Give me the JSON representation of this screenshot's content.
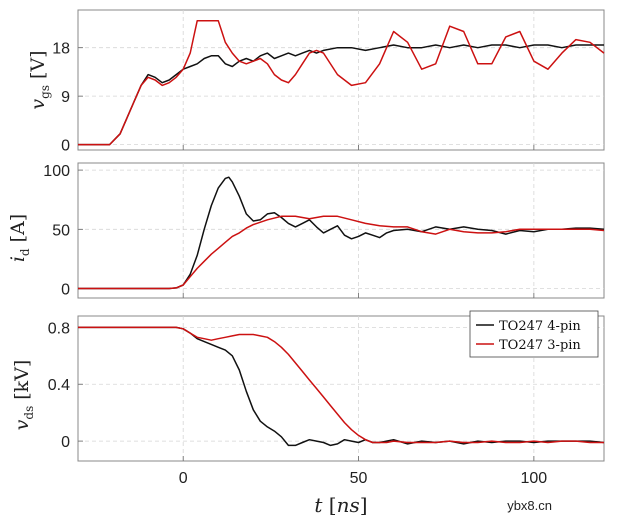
{
  "chart_data": {
    "type": "line",
    "xlabel": "t [ns]",
    "xlim": [
      -30,
      120
    ],
    "xticks": [
      0,
      50,
      100
    ],
    "colors": {
      "black": "#111111",
      "red": "#cc1111"
    },
    "legend": {
      "location": "top-right of bottom panel",
      "entries": [
        "TO247 4-pin",
        "TO247 3-pin"
      ]
    },
    "panels": [
      {
        "id": "vgs",
        "ylabel": "v_gs [V]",
        "ylim": [
          -1,
          25
        ],
        "yticks": [
          0,
          9,
          18
        ],
        "series": [
          {
            "name": "TO247 4-pin",
            "color": "#111111",
            "x": [
              -30,
              -21,
              -18,
              -14,
              -12,
              -10,
              -8,
              -6,
              -4,
              -2,
              0,
              2,
              4,
              6,
              8,
              10,
              12,
              14,
              16,
              18,
              20,
              22,
              24,
              26,
              28,
              30,
              32,
              34,
              36,
              38,
              40,
              44,
              48,
              52,
              56,
              60,
              64,
              68,
              72,
              76,
              80,
              84,
              88,
              92,
              96,
              100,
              104,
              108,
              112,
              116,
              120
            ],
            "y": [
              0,
              0,
              2,
              8,
              11,
              13,
              12.5,
              11.5,
              12,
              13,
              14,
              14.5,
              15,
              16,
              16.5,
              16.5,
              15,
              14.5,
              15.5,
              16,
              15.5,
              16.5,
              17,
              16,
              16.5,
              17,
              16.5,
              17,
              17.5,
              17,
              17.5,
              18,
              18,
              17.5,
              18,
              18.5,
              18,
              18,
              18.5,
              18,
              18.5,
              18,
              18.5,
              18.5,
              18,
              18.5,
              18.5,
              18,
              18.5,
              18.5,
              18.5
            ]
          },
          {
            "name": "TO247 3-pin",
            "color": "#cc1111",
            "x": [
              -30,
              -21,
              -18,
              -14,
              -12,
              -10,
              -8,
              -6,
              -4,
              -2,
              0,
              2,
              3,
              4,
              8,
              9,
              10,
              11,
              12,
              14,
              16,
              18,
              20,
              22,
              24,
              26,
              28,
              30,
              32,
              34,
              36,
              38,
              40,
              44,
              48,
              52,
              56,
              60,
              64,
              68,
              72,
              76,
              80,
              84,
              88,
              92,
              96,
              100,
              104,
              108,
              112,
              116,
              120
            ],
            "y": [
              0,
              0,
              2,
              8,
              11,
              12.5,
              12,
              11,
              11.5,
              12.5,
              14,
              17,
              20,
              23,
              23,
              23,
              23,
              21,
              19,
              17,
              15.5,
              15,
              15.5,
              16,
              15,
              13,
              12,
              11.5,
              13,
              15,
              17,
              17.5,
              17,
              13,
              11,
              11.5,
              15,
              21,
              19,
              14,
              15,
              22,
              21,
              15,
              15,
              20,
              21,
              15.5,
              14,
              17,
              19.5,
              19,
              17
            ]
          }
        ]
      },
      {
        "id": "id",
        "ylabel": "i_d [A]",
        "ylim": [
          -8,
          106
        ],
        "yticks": [
          0,
          50,
          100
        ],
        "series": [
          {
            "name": "TO247 4-pin",
            "color": "#111111",
            "x": [
              -30,
              -4,
              -2,
              0,
              2,
              4,
              6,
              8,
              10,
              12,
              13,
              14,
              16,
              18,
              20,
              22,
              24,
              26,
              28,
              30,
              32,
              34,
              36,
              38,
              40,
              42,
              44,
              46,
              48,
              50,
              52,
              54,
              56,
              58,
              60,
              64,
              68,
              72,
              76,
              80,
              84,
              88,
              92,
              96,
              100,
              104,
              108,
              112,
              116,
              120
            ],
            "y": [
              0,
              0,
              0.5,
              3,
              12,
              28,
              50,
              70,
              85,
              93,
              94,
              90,
              78,
              63,
              57,
              58,
              63,
              64,
              60,
              55,
              52,
              55,
              58,
              52,
              47,
              50,
              53,
              45,
              42,
              44,
              47,
              45,
              43,
              47,
              49,
              50,
              48,
              52,
              50,
              52,
              50,
              49,
              46,
              49,
              48,
              50,
              50,
              51,
              51,
              50
            ]
          },
          {
            "name": "TO247 3-pin",
            "color": "#cc1111",
            "x": [
              -30,
              -4,
              -2,
              0,
              2,
              4,
              6,
              8,
              10,
              12,
              14,
              16,
              18,
              20,
              24,
              28,
              32,
              36,
              40,
              44,
              48,
              52,
              56,
              60,
              64,
              68,
              72,
              76,
              80,
              84,
              88,
              92,
              96,
              100,
              104,
              108,
              112,
              116,
              120
            ],
            "y": [
              0,
              0,
              0.5,
              3,
              10,
              17,
              23,
              29,
              34,
              39,
              44,
              47,
              51,
              54,
              58,
              61,
              61,
              59,
              61,
              61,
              58,
              55,
              53,
              52,
              52,
              48,
              46,
              50,
              48,
              47,
              47,
              48,
              50,
              50,
              50,
              50,
              50,
              50,
              49
            ]
          }
        ]
      },
      {
        "id": "vds",
        "ylabel": "v_ds [kV]",
        "ylim": [
          -0.14,
          0.88
        ],
        "yticks": [
          0,
          0.4,
          0.8
        ],
        "series": [
          {
            "name": "TO247 4-pin",
            "color": "#111111",
            "x": [
              -30,
              -2,
              0,
              2,
              4,
              6,
              8,
              10,
              12,
              14,
              16,
              18,
              20,
              22,
              24,
              26,
              28,
              30,
              32,
              34,
              36,
              38,
              40,
              42,
              44,
              46,
              48,
              50,
              52,
              54,
              56,
              58,
              60,
              64,
              68,
              72,
              76,
              80,
              84,
              88,
              92,
              96,
              100,
              104,
              108,
              112,
              116,
              120
            ],
            "y": [
              0.8,
              0.8,
              0.79,
              0.76,
              0.72,
              0.7,
              0.68,
              0.66,
              0.64,
              0.6,
              0.5,
              0.35,
              0.22,
              0.14,
              0.1,
              0.07,
              0.03,
              -0.03,
              -0.03,
              -0.01,
              0.01,
              0,
              -0.01,
              -0.03,
              -0.02,
              0.01,
              0,
              -0.01,
              0.01,
              -0.01,
              -0.01,
              0,
              0.01,
              -0.02,
              0,
              -0.01,
              0,
              -0.02,
              0,
              -0.01,
              0,
              0,
              -0.01,
              0,
              0,
              0,
              0,
              -0.01
            ]
          },
          {
            "name": "TO247 3-pin",
            "color": "#cc1111",
            "x": [
              -30,
              -2,
              0,
              2,
              4,
              6,
              8,
              10,
              12,
              14,
              16,
              18,
              20,
              22,
              24,
              26,
              28,
              30,
              32,
              34,
              36,
              38,
              40,
              42,
              44,
              46,
              48,
              50,
              52,
              54,
              56,
              58,
              60,
              64,
              68,
              72,
              76,
              80,
              84,
              88,
              92,
              96,
              100,
              104,
              108,
              112,
              116,
              120
            ],
            "y": [
              0.8,
              0.8,
              0.79,
              0.76,
              0.73,
              0.72,
              0.71,
              0.72,
              0.73,
              0.74,
              0.75,
              0.75,
              0.75,
              0.74,
              0.73,
              0.7,
              0.66,
              0.61,
              0.55,
              0.49,
              0.43,
              0.37,
              0.31,
              0.25,
              0.19,
              0.13,
              0.08,
              0.04,
              0.01,
              -0.01,
              -0.01,
              -0.01,
              0,
              -0.01,
              -0.01,
              -0.01,
              0,
              -0.01,
              -0.01,
              0,
              -0.01,
              -0.01,
              0,
              -0.01,
              0,
              0,
              -0.01,
              -0.01
            ]
          }
        ]
      }
    ]
  },
  "watermark": "ybx8.cn"
}
